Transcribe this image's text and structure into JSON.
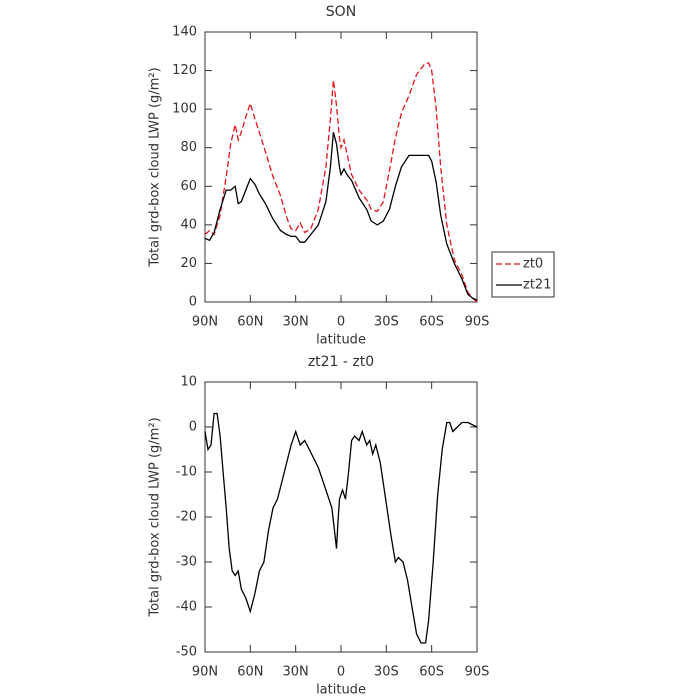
{
  "chart_data": [
    {
      "type": "line",
      "title": "SON",
      "xlabel": "latitude",
      "ylabel": "Total grd-box cloud LWP (g/m²)",
      "xlim": [
        90,
        -90
      ],
      "ylim": [
        0,
        140
      ],
      "xticks": [
        {
          "value": 90,
          "label": "90N"
        },
        {
          "value": 60,
          "label": "60N"
        },
        {
          "value": 30,
          "label": "30N"
        },
        0,
        {
          "value": -30,
          "label": "30S"
        },
        {
          "value": -60,
          "label": "60S"
        },
        {
          "value": -90,
          "label": "90S"
        }
      ],
      "yticks": [
        0,
        20,
        40,
        60,
        80,
        100,
        120,
        140
      ],
      "legend": "right",
      "x": [
        90,
        87,
        84,
        80,
        76,
        73,
        70,
        68,
        66,
        63,
        60,
        57,
        54,
        50,
        45,
        40,
        36,
        33,
        30,
        27,
        24,
        20,
        15,
        10,
        7,
        5,
        3,
        1,
        0,
        -2,
        -4,
        -7,
        -12,
        -17,
        -20,
        -24,
        -28,
        -32,
        -36,
        -40,
        -45,
        -50,
        -55,
        -58,
        -60,
        -63,
        -66,
        -70,
        -75,
        -80,
        -84,
        -87,
        -90
      ],
      "series": [
        {
          "name": "zt0",
          "color": "#e8141c",
          "dash": true,
          "values": [
            35,
            37,
            35,
            45,
            65,
            82,
            92,
            84,
            88,
            96,
            103,
            95,
            88,
            78,
            65,
            55,
            44,
            38,
            37,
            41,
            36,
            38,
            48,
            70,
            95,
            115,
            102,
            85,
            80,
            84,
            77,
            66,
            58,
            53,
            48,
            47,
            52,
            68,
            85,
            98,
            107,
            118,
            123,
            124,
            120,
            100,
            70,
            40,
            22,
            14,
            5,
            2,
            0
          ]
        },
        {
          "name": "zt21",
          "color": "#000000",
          "dash": false,
          "values": [
            33,
            32,
            36,
            48,
            58,
            58,
            60,
            51,
            52,
            58,
            64,
            61,
            56,
            51,
            43,
            37,
            35,
            34,
            34,
            31,
            31,
            35,
            40,
            52,
            70,
            88,
            82,
            70,
            66,
            69,
            66,
            63,
            54,
            48,
            42,
            40,
            42,
            48,
            60,
            70,
            76,
            76,
            76,
            76,
            73,
            62,
            45,
            30,
            20,
            12,
            4,
            2,
            1
          ]
        }
      ]
    },
    {
      "type": "line",
      "title": "zt21 - zt0",
      "xlabel": "latitude",
      "ylabel": "Total grd-box cloud LWP (g/m²)",
      "xlim": [
        90,
        -90
      ],
      "ylim": [
        -50,
        10
      ],
      "xticks": [
        {
          "value": 90,
          "label": "90N"
        },
        {
          "value": 60,
          "label": "60N"
        },
        {
          "value": 30,
          "label": "30N"
        },
        0,
        {
          "value": -30,
          "label": "30S"
        },
        {
          "value": -60,
          "label": "60S"
        },
        {
          "value": -90,
          "label": "90S"
        }
      ],
      "yticks": [
        -50,
        -40,
        -30,
        -20,
        -10,
        0,
        10
      ],
      "x": [
        90,
        88,
        86,
        84,
        82,
        80,
        78,
        76,
        74,
        72,
        70,
        68,
        66,
        63,
        60,
        57,
        54,
        51,
        48,
        45,
        42,
        39,
        36,
        33,
        30,
        27,
        24,
        21,
        18,
        15,
        12,
        9,
        6,
        4,
        3,
        2,
        1,
        -1,
        -3,
        -5,
        -7,
        -9,
        -12,
        -14,
        -17,
        -19,
        -21,
        -23,
        -26,
        -30,
        -33,
        -36,
        -38,
        -41,
        -44,
        -47,
        -50,
        -53,
        -56,
        -58,
        -61,
        -64,
        -67,
        -70,
        -72,
        -74,
        -77,
        -80,
        -84,
        -90
      ],
      "series": [
        {
          "color": "#000000",
          "dash": false,
          "values": [
            -1,
            -5,
            -4,
            3,
            3,
            -2,
            -10,
            -18,
            -27,
            -32,
            -33,
            -32,
            -36,
            -38,
            -41,
            -37,
            -32,
            -30,
            -23,
            -18,
            -16,
            -12,
            -8,
            -4,
            -1,
            -4,
            -3,
            -5,
            -7,
            -9,
            -12,
            -15,
            -18,
            -24,
            -27,
            -21,
            -16,
            -14,
            -16,
            -10,
            -3,
            -2,
            -3,
            -1,
            -4,
            -3,
            -6,
            -4,
            -8,
            -17,
            -24,
            -30,
            -29,
            -30,
            -34,
            -40,
            -46,
            -48,
            -48,
            -43,
            -30,
            -15,
            -5,
            1,
            1,
            -1,
            0,
            1,
            1,
            0
          ]
        }
      ]
    }
  ]
}
